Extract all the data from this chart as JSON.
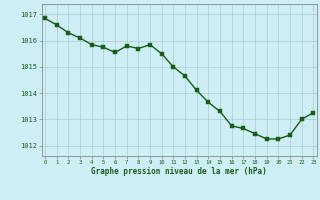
{
  "x": [
    0,
    1,
    2,
    3,
    4,
    5,
    6,
    7,
    8,
    9,
    10,
    11,
    12,
    13,
    14,
    15,
    16,
    17,
    18,
    19,
    20,
    21,
    22,
    23
  ],
  "y": [
    1016.85,
    1016.6,
    1016.3,
    1016.1,
    1015.85,
    1015.75,
    1015.55,
    1015.8,
    1015.7,
    1015.85,
    1015.5,
    1015.0,
    1014.65,
    1014.1,
    1013.65,
    1013.3,
    1012.75,
    1012.65,
    1012.45,
    1012.25,
    1012.25,
    1012.4,
    1013.0,
    1013.25
  ],
  "line_color": "#1a5c1a",
  "marker_color": "#1a5c1a",
  "bg_color": "#cceef4",
  "grid_color": "#aacccc",
  "axis_color": "#555555",
  "xlabel": "Graphe pression niveau de la mer (hPa)",
  "xlabel_color": "#1a5c1a",
  "tick_color": "#1a5c1a",
  "ylim": [
    1011.6,
    1017.4
  ],
  "yticks": [
    1012,
    1013,
    1014,
    1015,
    1016,
    1017
  ],
  "xtick_labels": [
    "0",
    "1",
    "2",
    "3",
    "4",
    "5",
    "6",
    "7",
    "8",
    "9",
    "10",
    "11",
    "12",
    "13",
    "14",
    "15",
    "16",
    "17",
    "18",
    "19",
    "20",
    "21",
    "22",
    "23"
  ],
  "marker_size": 2.5,
  "line_width": 1.0
}
